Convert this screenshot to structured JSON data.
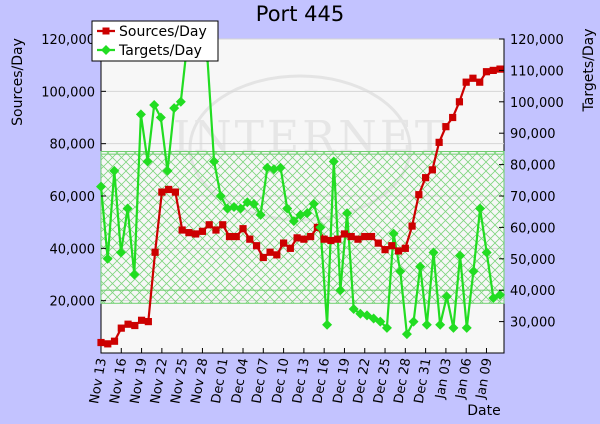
{
  "chart_data": {
    "type": "line",
    "title": "Port 445",
    "ylabel_left": "Sources/Day",
    "ylabel_right": "Targets/Day",
    "xlabel": "Date",
    "watermark": "INTERNET",
    "x_tick_labels": [
      "Nov 13",
      "Nov 16",
      "Nov 19",
      "Nov 22",
      "Nov 25",
      "Nov 28",
      "Dec 01",
      "Dec 04",
      "Dec 07",
      "Dec 10",
      "Dec 13",
      "Dec 16",
      "Dec 19",
      "Dec 22",
      "Dec 25",
      "Dec 28",
      "Dec 31",
      "Jan 03",
      "Jan 06",
      "Jan 09"
    ],
    "y_left_ticks": [
      "20,000",
      "40,000",
      "60,000",
      "80,000",
      "100,000",
      "120,000"
    ],
    "y_left_tick_values": [
      20000,
      40000,
      60000,
      80000,
      100000,
      120000
    ],
    "y_right_ticks": [
      "30,000",
      "40,000",
      "50,000",
      "60,000",
      "70,000",
      "80,000",
      "90,000",
      "100,000",
      "110,000",
      "120,000"
    ],
    "y_right_tick_values": [
      30000,
      40000,
      50000,
      60000,
      70000,
      80000,
      90000,
      100000,
      110000,
      120000
    ],
    "ylim_left": [
      0,
      120000
    ],
    "ylim_right": [
      20000,
      120000
    ],
    "grid": true,
    "legend_position": "top-left",
    "bands": [
      {
        "axis": "left",
        "range": [
          19000,
          77000
        ],
        "color": "#6fce6f"
      },
      {
        "axis": "left",
        "range": [
          24000,
          76000
        ],
        "color": "#6fce6f"
      }
    ],
    "series": [
      {
        "name": "Sources/Day",
        "axis": "left",
        "color": "#cc0000",
        "marker": "square",
        "values": [
          4000,
          3500,
          4500,
          9500,
          11000,
          10500,
          12500,
          12000,
          38500,
          61500,
          62500,
          61500,
          47000,
          46000,
          45500,
          46500,
          49000,
          47000,
          49000,
          44500,
          44500,
          47500,
          43500,
          41000,
          36500,
          38500,
          37500,
          42000,
          40000,
          44000,
          43500,
          44500,
          48000,
          43500,
          43000,
          43500,
          45500,
          44500,
          43500,
          44500,
          44500,
          42000,
          39500,
          41000,
          39000,
          40000,
          48500,
          60500,
          67000,
          70000,
          80500,
          86500,
          90000,
          96000,
          103500,
          105000,
          103500,
          107500,
          108000,
          108500
        ]
      },
      {
        "name": "Targets/Day",
        "axis": "right",
        "color": "#22dd22",
        "marker": "diamond",
        "values": [
          73000,
          50000,
          78000,
          52000,
          66000,
          45000,
          96000,
          81000,
          99000,
          95000,
          78000,
          98000,
          100000,
          119000,
          118000,
          117000,
          114000,
          81000,
          70000,
          66000,
          66500,
          66000,
          68000,
          67500,
          64000,
          79000,
          78500,
          79000,
          66000,
          62000,
          64000,
          64500,
          67500,
          60000,
          29000,
          81000,
          40000,
          64500,
          34000,
          32500,
          32000,
          31000,
          30000,
          28000,
          58000,
          46000,
          26000,
          30000,
          47500,
          29000,
          52000,
          29000,
          38000,
          28000,
          51000,
          28000,
          46000,
          66000,
          52000,
          37500,
          38500
        ]
      }
    ]
  }
}
